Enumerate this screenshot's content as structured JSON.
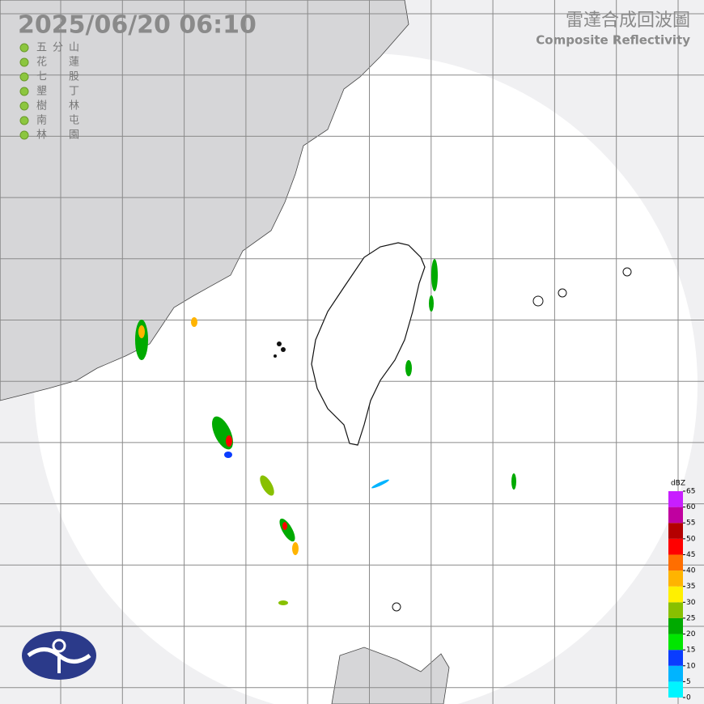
{
  "header": {
    "timestamp": "2025/06/20  06:10",
    "title": "雷達合成回波圖",
    "subtitle": "Composite Reflectivity"
  },
  "stations": [
    "五分山",
    "花蓮",
    "七股",
    "墾丁",
    "樹林",
    "南屯",
    "林園"
  ],
  "legend": {
    "unit": "dBZ",
    "ticks": [
      0,
      5,
      10,
      15,
      20,
      25,
      30,
      35,
      40,
      45,
      50,
      55,
      60,
      65
    ],
    "colors": [
      "#00f5ff",
      "#00b4ff",
      "#0a3cff",
      "#00e600",
      "#00aa00",
      "#88c000",
      "#fff000",
      "#ffb400",
      "#ff6e00",
      "#ff0000",
      "#b40000",
      "#c000a0",
      "#c81eff"
    ]
  }
}
